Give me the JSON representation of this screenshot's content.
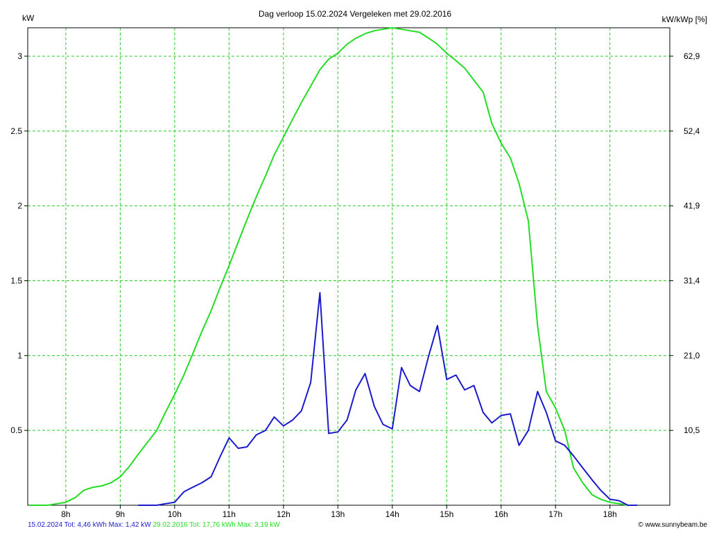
{
  "chart_data": {
    "type": "line",
    "title": "Dag  verloop 15.02.2024   Vergeleken met 29.02.2016",
    "ylabel_left": "kW",
    "ylabel_right": "kW/kWp [%]",
    "ylim": [
      0,
      3.19
    ],
    "xlim": [
      7.3,
      19.1
    ],
    "grid": true,
    "x_ticks": [
      {
        "value": 8,
        "label": "8h"
      },
      {
        "value": 9,
        "label": "9h"
      },
      {
        "value": 10,
        "label": "10h"
      },
      {
        "value": 11,
        "label": "11h"
      },
      {
        "value": 12,
        "label": "12h"
      },
      {
        "value": 13,
        "label": "13h"
      },
      {
        "value": 14,
        "label": "14h"
      },
      {
        "value": 15,
        "label": "15h"
      },
      {
        "value": 16,
        "label": "16h"
      },
      {
        "value": 17,
        "label": "17h"
      },
      {
        "value": 18,
        "label": "18h"
      }
    ],
    "y_ticks_left": [
      {
        "value": 0.5,
        "label": "0.5"
      },
      {
        "value": 1,
        "label": "1"
      },
      {
        "value": 1.5,
        "label": "1.5"
      },
      {
        "value": 2,
        "label": "2"
      },
      {
        "value": 2.5,
        "label": "2.5"
      },
      {
        "value": 3,
        "label": "3"
      }
    ],
    "y_ticks_right": [
      {
        "value": 0.5,
        "label": "10,5"
      },
      {
        "value": 1,
        "label": "21,0"
      },
      {
        "value": 1.5,
        "label": "31,4"
      },
      {
        "value": 2,
        "label": "41,9"
      },
      {
        "value": 2.5,
        "label": "52,4"
      },
      {
        "value": 3,
        "label": "62,9"
      }
    ],
    "series": [
      {
        "name": "29.02.2016",
        "color": "#22dd22",
        "x": [
          7.33,
          7.67,
          7.83,
          8.0,
          8.17,
          8.33,
          8.5,
          8.67,
          8.83,
          9.0,
          9.17,
          9.33,
          9.5,
          9.67,
          9.83,
          10.0,
          10.17,
          10.33,
          10.5,
          10.67,
          10.83,
          11.0,
          11.17,
          11.33,
          11.5,
          11.67,
          11.83,
          12.0,
          12.17,
          12.33,
          12.5,
          12.67,
          12.83,
          13.0,
          13.17,
          13.33,
          13.5,
          13.67,
          13.83,
          14.0,
          14.17,
          14.33,
          14.5,
          14.67,
          14.83,
          15.0,
          15.17,
          15.33,
          15.5,
          15.67,
          15.83,
          16.0,
          16.17,
          16.33,
          16.5,
          16.67,
          16.83,
          17.0,
          17.17,
          17.33,
          17.5,
          17.67,
          17.83,
          18.0,
          18.17,
          18.33,
          18.5
        ],
        "values": [
          0.0,
          0.0,
          0.01,
          0.02,
          0.05,
          0.1,
          0.12,
          0.13,
          0.15,
          0.19,
          0.26,
          0.34,
          0.42,
          0.5,
          0.62,
          0.74,
          0.87,
          1.01,
          1.16,
          1.3,
          1.45,
          1.6,
          1.76,
          1.91,
          2.06,
          2.2,
          2.34,
          2.46,
          2.58,
          2.69,
          2.8,
          2.91,
          2.98,
          3.02,
          3.08,
          3.12,
          3.15,
          3.17,
          3.18,
          3.19,
          3.18,
          3.17,
          3.16,
          3.12,
          3.08,
          3.02,
          2.97,
          2.92,
          2.84,
          2.76,
          2.55,
          2.42,
          2.32,
          2.15,
          1.9,
          1.2,
          0.76,
          0.65,
          0.5,
          0.25,
          0.15,
          0.07,
          0.04,
          0.02,
          0.01,
          0.0,
          0.0
        ]
      },
      {
        "name": "15.02.2024",
        "color": "#1a1acc",
        "x": [
          9.33,
          9.67,
          9.83,
          10.0,
          10.17,
          10.33,
          10.5,
          10.67,
          10.83,
          11.0,
          11.17,
          11.33,
          11.5,
          11.67,
          11.83,
          12.0,
          12.17,
          12.33,
          12.5,
          12.67,
          12.83,
          13.0,
          13.17,
          13.33,
          13.5,
          13.67,
          13.83,
          14.0,
          14.17,
          14.33,
          14.5,
          14.67,
          14.83,
          15.0,
          15.17,
          15.33,
          15.5,
          15.67,
          15.83,
          16.0,
          16.17,
          16.33,
          16.5,
          16.67,
          16.83,
          17.0,
          17.17,
          17.33,
          17.5,
          17.67,
          17.83,
          18.0,
          18.17,
          18.33,
          18.5
        ],
        "values": [
          0.0,
          0.0,
          0.01,
          0.02,
          0.09,
          0.12,
          0.15,
          0.19,
          0.32,
          0.45,
          0.38,
          0.39,
          0.47,
          0.5,
          0.59,
          0.53,
          0.57,
          0.63,
          0.82,
          1.42,
          0.48,
          0.49,
          0.57,
          0.77,
          0.88,
          0.66,
          0.54,
          0.51,
          0.92,
          0.8,
          0.76,
          1.0,
          1.2,
          0.84,
          0.87,
          0.77,
          0.8,
          0.62,
          0.55,
          0.6,
          0.61,
          0.4,
          0.5,
          0.76,
          0.62,
          0.43,
          0.4,
          0.33,
          0.25,
          0.17,
          0.1,
          0.04,
          0.03,
          0.0,
          0.0
        ]
      }
    ]
  },
  "footer": {
    "series_a_text": "15.02.2024 Tot: 4,46 kWh Max: 1,42 kW",
    "series_a_color": "#1a1acc",
    "series_b_text": "29.02.2016 Tot: 17,76 kWh Max: 3,19 kW",
    "series_b_color": "#22dd22",
    "credit": "© www.sunnybeam.be"
  }
}
